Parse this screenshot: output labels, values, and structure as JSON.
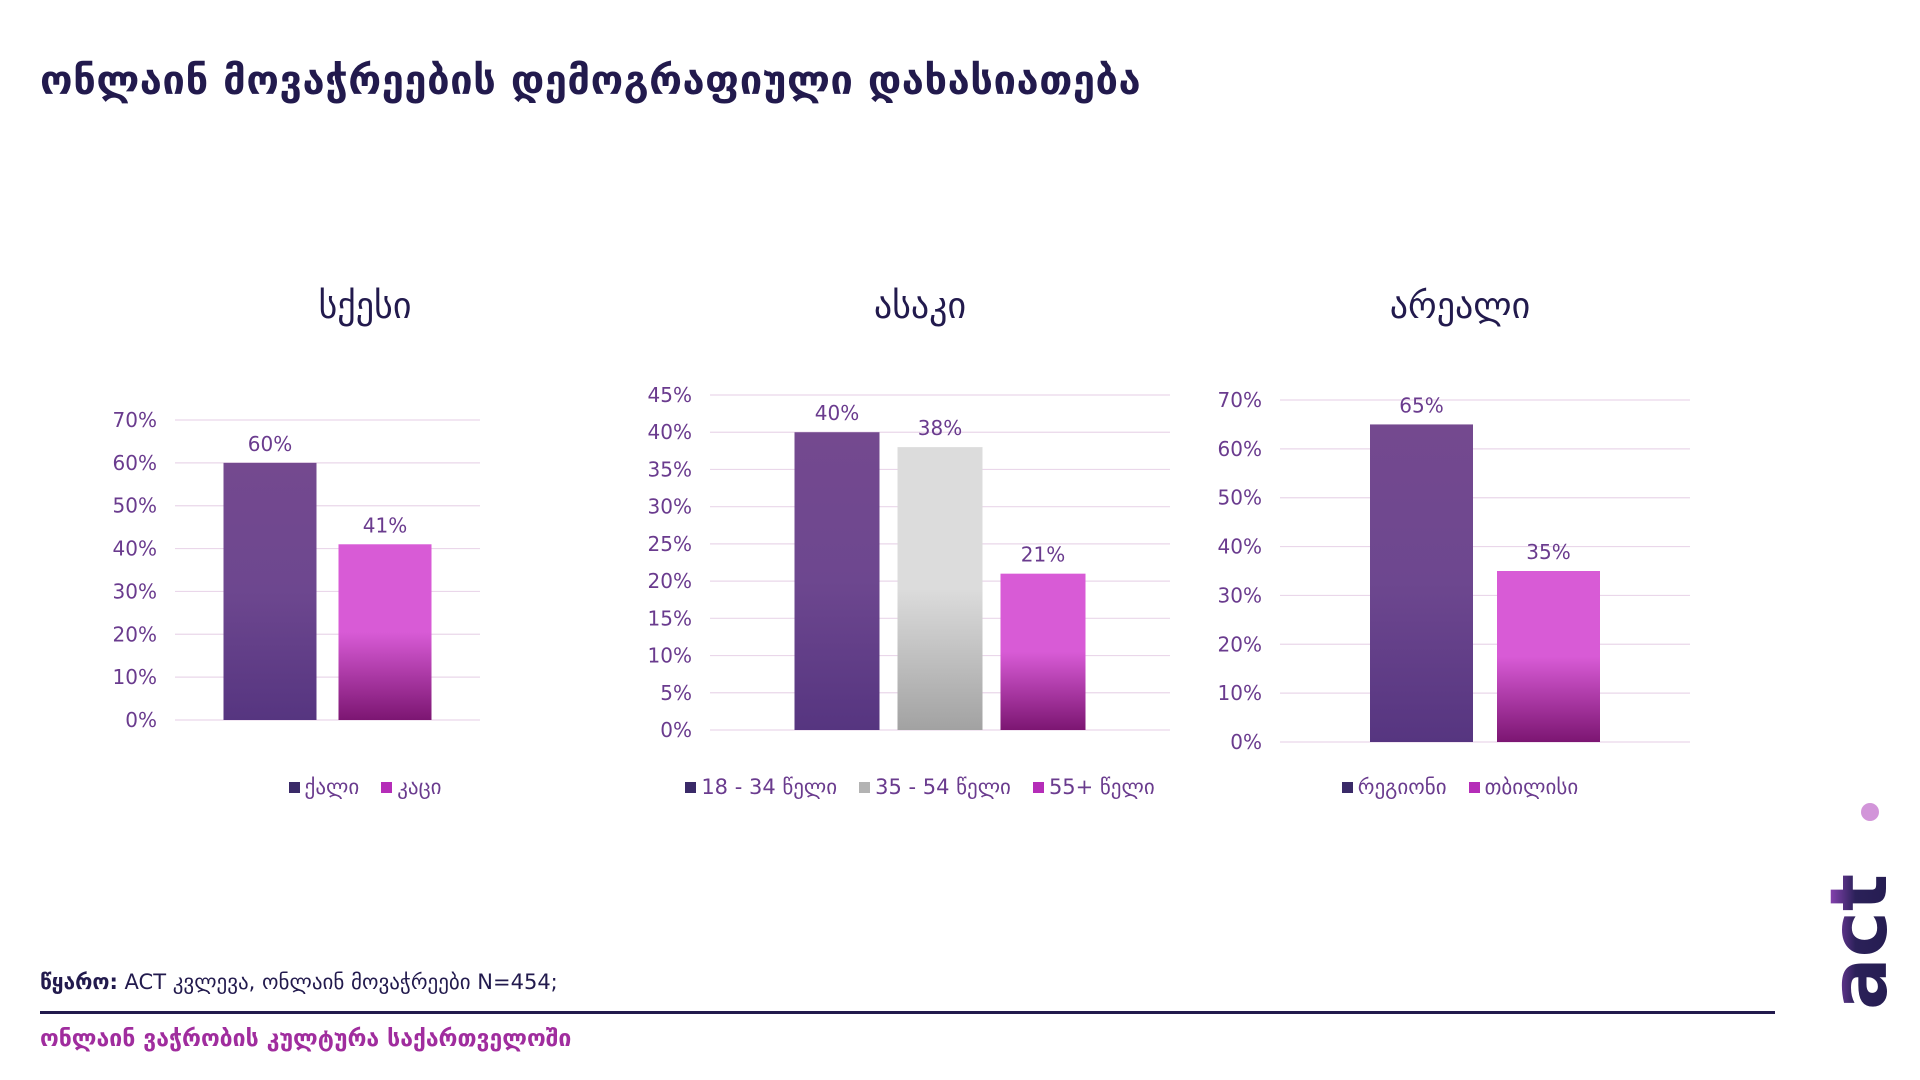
{
  "title": "ონლაინ მოვაჭრეების დემოგრაფიული დახასიათება",
  "charts": [
    {
      "title": "სქესი"
    },
    {
      "title": "ასაკი"
    },
    {
      "title": "არეალი"
    }
  ],
  "source": {
    "label": "წყარო:",
    "text": " ACT კვლევა, ონლაინ მოვაჭრეები N=454;"
  },
  "footer": "ონლაინ ვაჭრობის კულტურა საქართველოში",
  "logo": {
    "text": "act"
  },
  "colors": {
    "dark_purple": "#5a3a84",
    "magenta": "#a626a8",
    "gray": "#b3b3b3",
    "navy": "#221a4d",
    "label_purple": "#6a3b8e"
  },
  "chart_data": [
    {
      "type": "bar",
      "title": "სქესი",
      "categories": [
        "ქალი",
        "კაცი"
      ],
      "values": [
        60,
        41
      ],
      "data_labels": [
        "60%",
        "41%"
      ],
      "legend": [
        "ქალი",
        "კაცი"
      ],
      "series_colors": [
        "dark_purple",
        "magenta"
      ],
      "ylim": [
        0,
        70
      ],
      "ticks": [
        0,
        10,
        20,
        30,
        40,
        50,
        60,
        70
      ],
      "tick_labels": [
        "0%",
        "10%",
        "20%",
        "30%",
        "40%",
        "50%",
        "60%",
        "70%"
      ],
      "grid": true,
      "legend_position": "bottom"
    },
    {
      "type": "bar",
      "title": "ასაკი",
      "categories": [
        "18 - 34 წელი",
        "35 - 54 წელი",
        "55+ წელი"
      ],
      "values": [
        40,
        38,
        21
      ],
      "data_labels": [
        "40%",
        "38%",
        "21%"
      ],
      "legend": [
        "18 - 34 წელი",
        "35 - 54 წელი",
        "55+ წელი"
      ],
      "series_colors": [
        "dark_purple",
        "gray",
        "magenta"
      ],
      "ylim": [
        0,
        45
      ],
      "ticks": [
        0,
        5,
        10,
        15,
        20,
        25,
        30,
        35,
        40,
        45
      ],
      "tick_labels": [
        "0%",
        "5%",
        "10%",
        "15%",
        "20%",
        "25%",
        "30%",
        "35%",
        "40%",
        "45%"
      ],
      "grid": true,
      "legend_position": "bottom"
    },
    {
      "type": "bar",
      "title": "არეალი",
      "categories": [
        "რეგიონი",
        "თბილისი"
      ],
      "values": [
        65,
        35
      ],
      "data_labels": [
        "65%",
        "35%"
      ],
      "legend": [
        "რეგიონი",
        "თბილისი"
      ],
      "series_colors": [
        "dark_purple",
        "magenta"
      ],
      "ylim": [
        0,
        70
      ],
      "ticks": [
        0,
        10,
        20,
        30,
        40,
        50,
        60,
        70
      ],
      "tick_labels": [
        "0%",
        "10%",
        "20%",
        "30%",
        "40%",
        "50%",
        "60%",
        "70%"
      ],
      "grid": true,
      "legend_position": "bottom"
    }
  ]
}
